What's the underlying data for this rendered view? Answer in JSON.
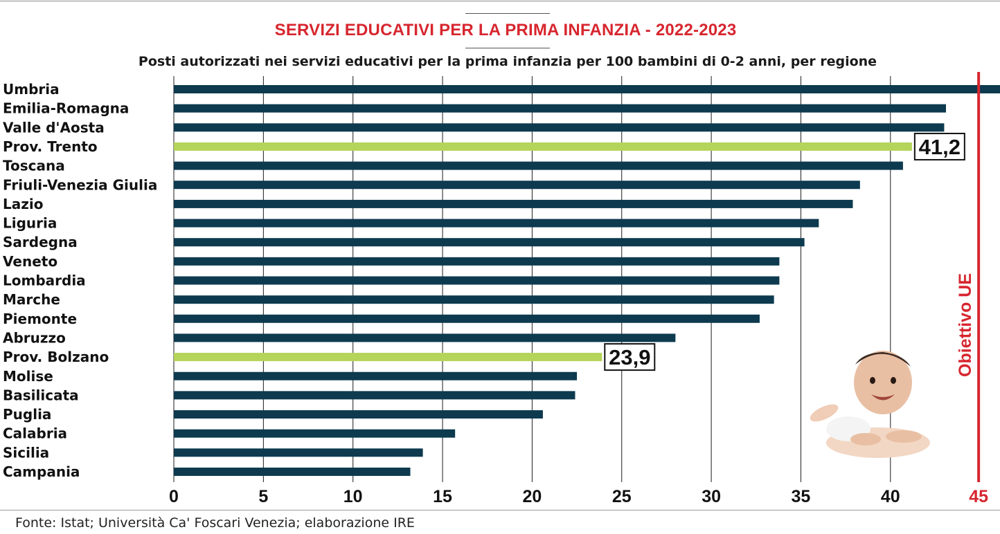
{
  "title": "SERVIZI EDUCATIVI PER LA PRIMA INFANZIA - 2022-2023",
  "subtitle": "Posti autorizzati nei servizi educativi per la prima infanzia per 100 bambini di 0-2 anni, per regione",
  "source": "Fonte: Istat; Università Ca' Foscari Venezia; elaborazione IRE",
  "colors": {
    "bar": "#0d3a4f",
    "highlight": "#b4d45a",
    "target": "#d7262f",
    "grid": "#1a1a1a"
  },
  "chart_data": {
    "type": "bar",
    "orientation": "horizontal",
    "categories": [
      "Umbria",
      "Emilia-Romagna",
      "Valle d'Aosta",
      "Prov. Trento",
      "Toscana",
      "Friuli-Venezia Giulia",
      "Lazio",
      "Liguria",
      "Sardegna",
      "Veneto",
      "Lombardia",
      "Marche",
      "Piemonte",
      "Abruzzo",
      "Prov. Bolzano",
      "Molise",
      "Basilicata",
      "Puglia",
      "Calabria",
      "Sicilia",
      "Campania"
    ],
    "values": [
      47.0,
      43.1,
      43.0,
      41.2,
      40.7,
      38.3,
      37.9,
      36.0,
      35.2,
      33.8,
      33.8,
      33.5,
      32.7,
      28.0,
      23.9,
      22.5,
      22.4,
      20.6,
      15.7,
      13.9,
      13.2
    ],
    "highlighted": [
      "Prov. Trento",
      "Prov. Bolzano"
    ],
    "data_labels": {
      "Prov. Trento": "41,2",
      "Prov. Bolzano": "23,9"
    },
    "xticks": [
      0,
      5,
      10,
      15,
      20,
      25,
      30,
      35,
      40,
      45
    ],
    "xlim": [
      0,
      47
    ],
    "grid": true,
    "target": {
      "value": 45,
      "label": "Obiettivo UE",
      "tick_label": "45"
    }
  }
}
